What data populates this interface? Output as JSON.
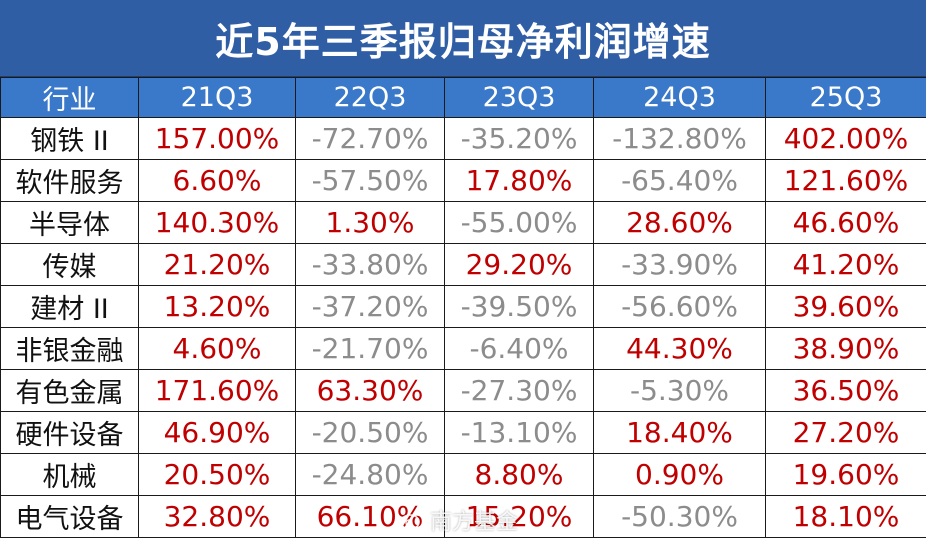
{
  "title": "近5年三季报归母净利润增速",
  "headers": [
    "行业",
    "21Q3",
    "22Q3",
    "23Q3",
    "24Q3",
    "25Q3"
  ],
  "rows": [
    {
      "industry": "钢铁 II",
      "values": [
        "157.00%",
        "-72.70%",
        "-35.20%",
        "-132.80%",
        "402.00%"
      ]
    },
    {
      "industry": "软件服务",
      "values": [
        "6.60%",
        "-57.50%",
        "17.80%",
        "-65.40%",
        "121.60%"
      ]
    },
    {
      "industry": "半导体",
      "values": [
        "140.30%",
        "1.30%",
        "-55.00%",
        "28.60%",
        "46.60%"
      ]
    },
    {
      "industry": "传媒",
      "values": [
        "21.20%",
        "-33.80%",
        "29.20%",
        "-33.90%",
        "41.20%"
      ]
    },
    {
      "industry": "建材 II",
      "values": [
        "13.20%",
        "-37.20%",
        "-39.50%",
        "-56.60%",
        "39.60%"
      ]
    },
    {
      "industry": "非银金融",
      "values": [
        "4.60%",
        "-21.70%",
        "-6.40%",
        "44.30%",
        "38.90%"
      ]
    },
    {
      "industry": "有色金属",
      "values": [
        "171.60%",
        "63.30%",
        "-27.30%",
        "-5.30%",
        "36.50%"
      ]
    },
    {
      "industry": "硬件设备",
      "values": [
        "46.90%",
        "-20.50%",
        "-13.10%",
        "18.40%",
        "27.20%"
      ]
    },
    {
      "industry": "机械",
      "values": [
        "20.50%",
        "-24.80%",
        "8.80%",
        "0.90%",
        "19.60%"
      ]
    },
    {
      "industry": "电气设备",
      "values": [
        "32.80%",
        "66.10%",
        "15.20%",
        "-50.30%",
        "18.10%"
      ]
    }
  ],
  "colors": {
    "title_bg": "#2f5ea5",
    "header_bg": "#3a78c9",
    "positive": "#c00000",
    "negative": "#8c8c8c"
  },
  "watermark": {
    "icon": "weibo-icon",
    "text": "南方基金"
  }
}
